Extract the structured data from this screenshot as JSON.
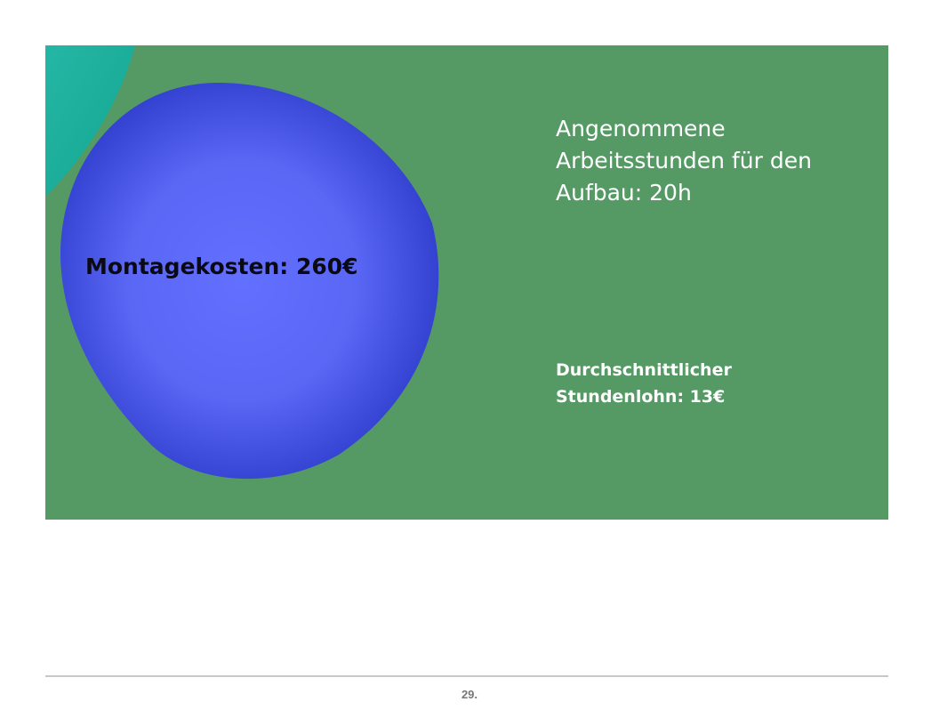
{
  "slide": {
    "blob_label": "Montagekosten: 260€",
    "hours_text": "Angenommene Arbeitsstunden für den Aufbau: 20h",
    "wage_text": "Durchschnittlicher Stundenlohn: 13€"
  },
  "colors": {
    "background": "#559a64",
    "blob_center": "#6370ff",
    "blob_edge": "#2f3dcc",
    "corner_shape": "#1fae9a",
    "text_light": "#ffffff",
    "text_dark": "#0a0a14"
  },
  "footer": {
    "page_number": "29."
  }
}
